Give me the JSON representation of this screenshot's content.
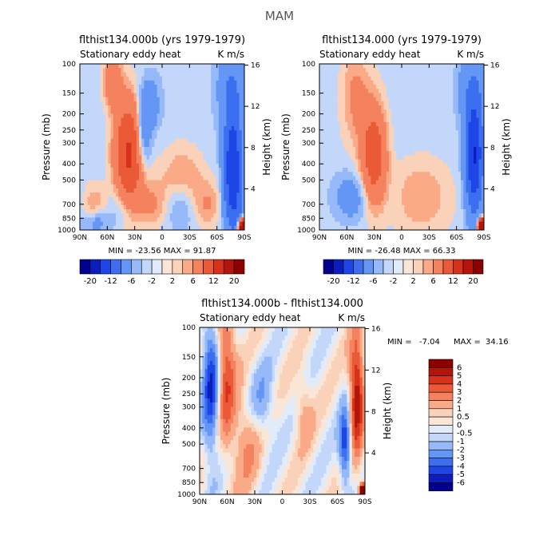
{
  "title": "MAM",
  "chart_data": [
    {
      "type": "heatmap",
      "title": "flthist134.000b (yrs 1979-1979)",
      "subtitle_left": "Stationary eddy heat",
      "subtitle_right": "K m/s",
      "ylabel": "Pressure (mb)",
      "ylabel_right": "Height (km)",
      "x_ticks": [
        "90N",
        "60N",
        "30N",
        "0",
        "30S",
        "60S",
        "90S"
      ],
      "y_ticks": [
        "100",
        "150",
        "200",
        "250",
        "300",
        "400",
        "500",
        "700",
        "850",
        "1000"
      ],
      "height_ticks": [
        "16",
        "12",
        "8",
        "4"
      ],
      "min_label": "MIN = -23.56",
      "max_label": "MAX = 91.87",
      "colorbar_labels": [
        "-20",
        "-12",
        "-6",
        "-2",
        "2",
        "6",
        "12",
        "20"
      ]
    },
    {
      "type": "heatmap",
      "title": "flthist134.000 (yrs 1979-1979)",
      "subtitle_left": "Stationary eddy heat",
      "subtitle_right": "K m/s",
      "ylabel": "Pressure (mb)",
      "ylabel_right": "Height (km)",
      "x_ticks": [
        "90N",
        "60N",
        "30N",
        "0",
        "30S",
        "60S",
        "90S"
      ],
      "y_ticks": [
        "100",
        "150",
        "200",
        "250",
        "300",
        "400",
        "500",
        "700",
        "850",
        "1000"
      ],
      "height_ticks": [
        "16",
        "12",
        "8",
        "4"
      ],
      "min_label": "MIN = -26.48",
      "max_label": "MAX = 66.33",
      "colorbar_labels": [
        "-20",
        "-12",
        "-6",
        "-2",
        "2",
        "6",
        "12",
        "20"
      ]
    },
    {
      "type": "heatmap",
      "title": "flthist134.000b - flthist134.000",
      "subtitle_left": "Stationary eddy heat",
      "subtitle_right": "K m/s",
      "ylabel": "Pressure (mb)",
      "ylabel_right": "Height (km)",
      "x_ticks": [
        "90N",
        "60N",
        "30N",
        "0",
        "30S",
        "60S",
        "90S"
      ],
      "y_ticks": [
        "100",
        "150",
        "200",
        "250",
        "300",
        "400",
        "500",
        "700",
        "850",
        "1000"
      ],
      "height_ticks": [
        "16",
        "12",
        "8",
        "4"
      ],
      "min_label": "MIN =",
      "min_value": "-7.04",
      "max_label": "MAX =",
      "max_value": "34.16",
      "colorbar_labels": [
        "6",
        "5",
        "4",
        "3",
        "2",
        "1",
        "0.5",
        "0",
        "-0.5",
        "-1",
        "-2",
        "-3",
        "-4",
        "-5",
        "-6"
      ]
    }
  ],
  "colors": {
    "neg": [
      "#00008c",
      "#0a1ebe",
      "#1e46e6",
      "#3c6ef0",
      "#6496f5",
      "#96b9fa",
      "#c3d7fa",
      "#e1ebfa"
    ],
    "pos": [
      "#fae6d7",
      "#fad2b9",
      "#faaa87",
      "#f5825f",
      "#eb5a37",
      "#d73219",
      "#b4140a",
      "#8c0000"
    ],
    "diff_bar": [
      "#8c0000",
      "#b4140a",
      "#d73219",
      "#eb5a37",
      "#f5825f",
      "#faaa87",
      "#fad2b9",
      "#fae6d7",
      "#e1ebfa",
      "#c3d7fa",
      "#96b9fa",
      "#6496f5",
      "#3c6ef0",
      "#1e46e6",
      "#0a1ebe",
      "#00008c"
    ]
  }
}
